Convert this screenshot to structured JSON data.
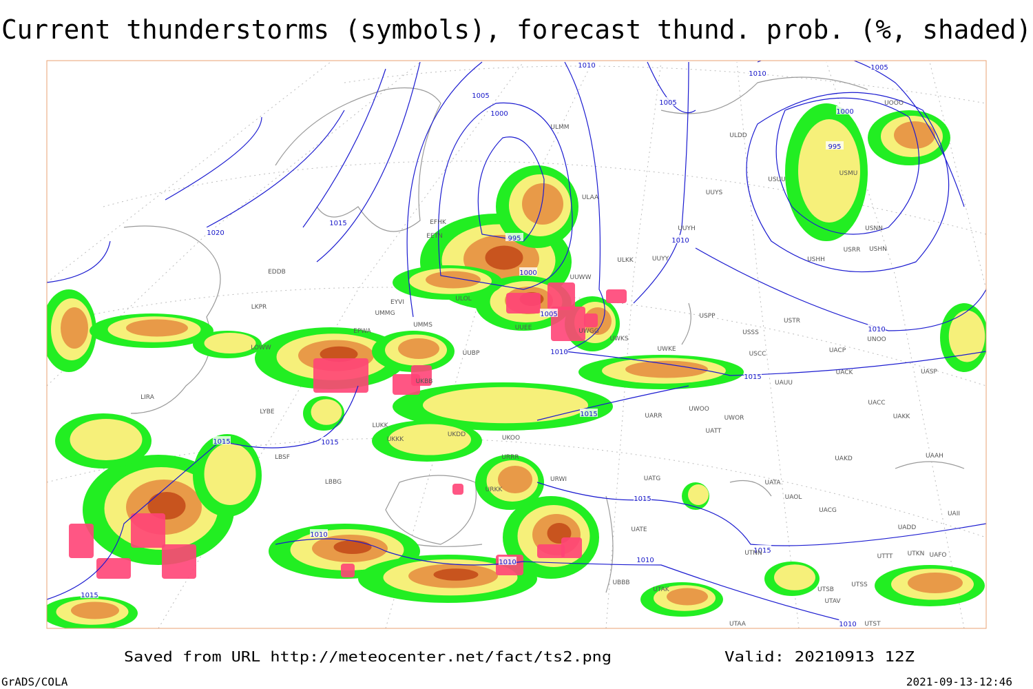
{
  "header": {
    "title": "Current thunderstorms (symbols), forecast thund. prob. (%, shaded)"
  },
  "map": {
    "isobar_labels": [
      "1010",
      "1010",
      "1005",
      "1005",
      "1000",
      "1005",
      "1000",
      "995",
      "1015",
      "1020",
      "995",
      "1010",
      "1000",
      "1005",
      "1010",
      "1015",
      "1015",
      "1015",
      "1015",
      "1015",
      "1010",
      "1015",
      "1010",
      "1010",
      "1015",
      "1010",
      "1010"
    ],
    "station_labels": [
      "EFHK",
      "EETN",
      "ULOL",
      "UMMS",
      "UUWW",
      "ULAA",
      "ULMM",
      "ULDD",
      "UUYS",
      "UUYH",
      "UUYY",
      "ULKK",
      "USSS",
      "USTR",
      "USPP",
      "UWKS",
      "UWKE",
      "USCC",
      "UACP",
      "UNOO",
      "UACK",
      "UASP",
      "UAUU",
      "UACC",
      "UAKK",
      "UARR",
      "UWOO",
      "UWOR",
      "UATT",
      "UAKD",
      "UAAH",
      "UATG",
      "UATA",
      "UAOL",
      "UACG",
      "UATE",
      "UADD",
      "UTNN",
      "UTSS",
      "UTSB",
      "UTAV",
      "UTST",
      "UTAA",
      "UBBB",
      "UTAK",
      "URWI",
      "URRR",
      "URKK",
      "UKOO",
      "UKDD",
      "UKKK",
      "LUKK",
      "LBSF",
      "LBBG",
      "LYBE",
      "LIRA",
      "LOWW",
      "LKPR",
      "EDDB",
      "EPWA",
      "UMMG",
      "UKBB",
      "UUBP",
      "EYVI",
      "USRR",
      "USHH",
      "USHN",
      "USMU",
      "USNN",
      "USUU",
      "UOOO",
      "UTTT",
      "UTKN",
      "UAFO",
      "UAII",
      "UWGG",
      "UUEE"
    ]
  },
  "footer": {
    "source": "Saved from URL http://meteocenter.net/fact/ts2.png",
    "valid": "Valid: 20210913 12Z",
    "software": "GrADS/COLA",
    "timestamp": "2021-09-13-12:46"
  }
}
